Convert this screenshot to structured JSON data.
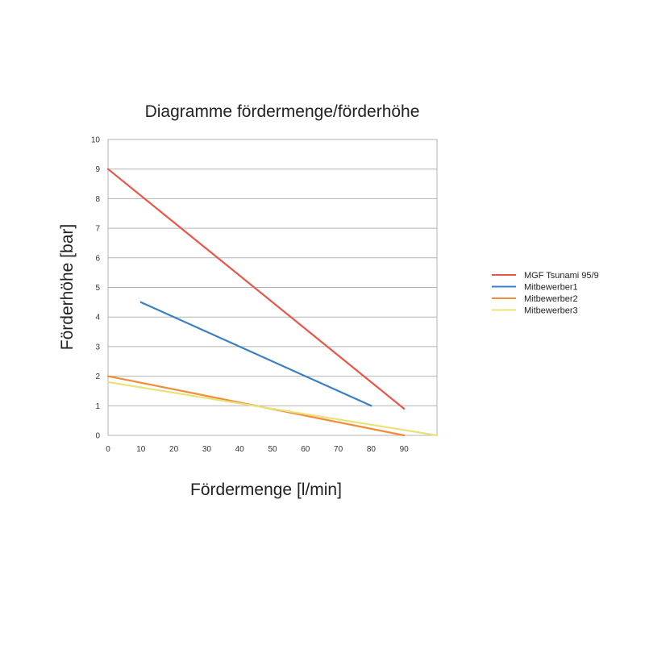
{
  "chart_data": {
    "type": "line",
    "title": "Diagramme fördermenge/förderhöhe",
    "xlabel": "Fördermenge  [l/min]",
    "ylabel": "Förderhöhe  [bar]",
    "xlim": [
      0,
      100
    ],
    "ylim": [
      0,
      10
    ],
    "x_ticks": [
      "0",
      "10",
      "20",
      "30",
      "40",
      "50",
      "60",
      "70",
      "80",
      "90"
    ],
    "y_ticks": [
      "0",
      "1",
      "2",
      "3",
      "4",
      "5",
      "6",
      "7",
      "8",
      "9",
      "10"
    ],
    "grid": "horizontal",
    "legend_position": "right",
    "series": [
      {
        "name": "MGF Tsunami 95/9",
        "color": "#e8574a",
        "x": [
          0,
          90
        ],
        "y": [
          9,
          0.9
        ]
      },
      {
        "name": "Mitbewerber1",
        "color": "#3a7fc4",
        "x": [
          10,
          80
        ],
        "y": [
          4.5,
          1
        ]
      },
      {
        "name": "Mitbewerber2",
        "color": "#f28c38",
        "x": [
          0,
          90
        ],
        "y": [
          2,
          0
        ]
      },
      {
        "name": "Mitbewerber3",
        "color": "#e9e27a",
        "x": [
          0,
          100
        ],
        "y": [
          1.8,
          0
        ]
      }
    ]
  }
}
